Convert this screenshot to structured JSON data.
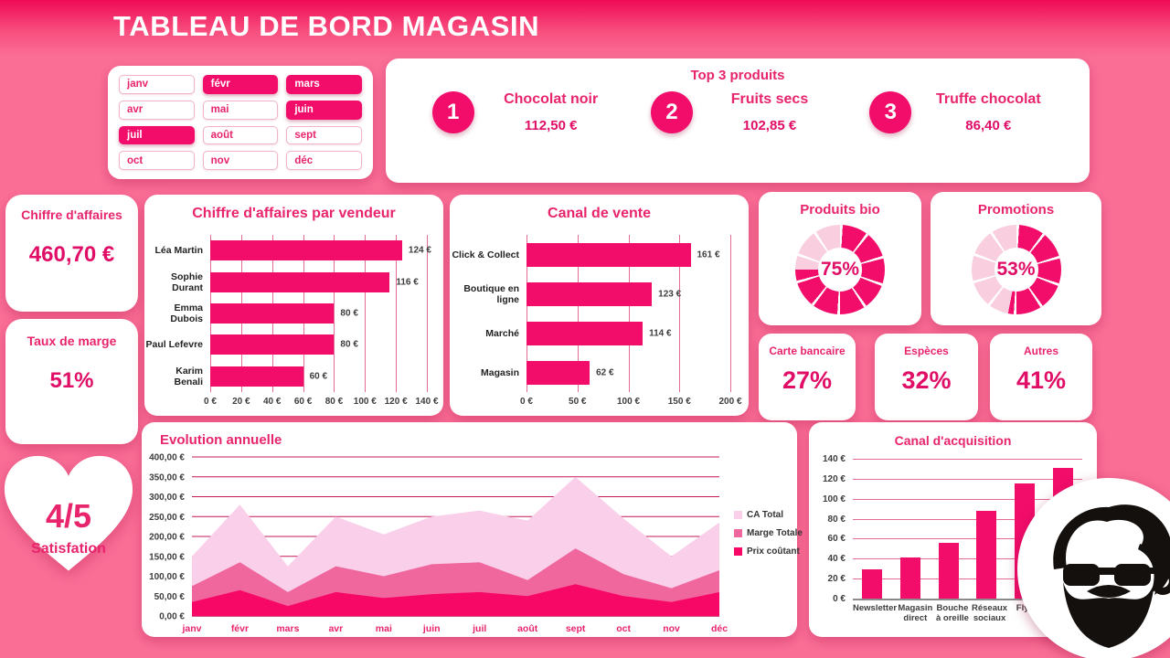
{
  "header": {
    "title": "TABLEAU DE BORD MAGASIN"
  },
  "colors": {
    "background": "#FA6E96",
    "header_gradient_top": "#EF0A57",
    "accent": "#F20D6B",
    "title_pink": "#E8246D",
    "value_pink": "#E00E66",
    "donut_light": "#F9CFE0",
    "grid_light": "#E46A97",
    "grid_dark": "#C21858",
    "axis_text": "#3D3D3D",
    "card_bg": "#FFFFFF"
  },
  "month_selector": {
    "months": [
      {
        "label": "janv",
        "selected": false
      },
      {
        "label": "févr",
        "selected": true
      },
      {
        "label": "mars",
        "selected": true
      },
      {
        "label": "avr",
        "selected": false
      },
      {
        "label": "mai",
        "selected": false
      },
      {
        "label": "juin",
        "selected": true
      },
      {
        "label": "juil",
        "selected": true
      },
      {
        "label": "août",
        "selected": false
      },
      {
        "label": "sept",
        "selected": false
      },
      {
        "label": "oct",
        "selected": false
      },
      {
        "label": "nov",
        "selected": false
      },
      {
        "label": "déc",
        "selected": false
      }
    ]
  },
  "top_products": {
    "title": "Top 3 produits",
    "items": [
      {
        "rank": "1",
        "name": "Chocolat noir",
        "value": "112,50 €"
      },
      {
        "rank": "2",
        "name": "Fruits secs",
        "value": "102,85 €"
      },
      {
        "rank": "3",
        "name": "Truffe chocolat",
        "value": "86,40 €"
      }
    ]
  },
  "kpis": {
    "revenue": {
      "label": "Chiffre d'affaires",
      "value": "460,70 €"
    },
    "margin": {
      "label": "Taux de marge",
      "value": "51%"
    }
  },
  "donuts": [
    {
      "title": "Produits bio",
      "value": 75,
      "display": "75%"
    },
    {
      "title": "Promotions",
      "value": 53,
      "display": "53%"
    }
  ],
  "payment_methods": [
    {
      "label": "Carte bancaire",
      "value": "27%"
    },
    {
      "label": "Espèces",
      "value": "32%"
    },
    {
      "label": "Autres",
      "value": "41%"
    }
  ],
  "satisfaction": {
    "value": "4/5",
    "label": "Satisfation"
  },
  "chart_data": [
    {
      "type": "bar",
      "orientation": "horizontal",
      "title": "Chiffre d'affaires par vendeur",
      "categories": [
        "Léa Martin",
        "Sophie Durant",
        "Emma Dubois",
        "Paul Lefevre",
        "Karim Benali"
      ],
      "values": [
        124,
        116,
        80,
        80,
        60
      ],
      "value_labels": [
        "124 €",
        "116 €",
        "80 €",
        "80 €",
        "60 €"
      ],
      "xlim": [
        0,
        140
      ],
      "tick_step": 20,
      "unit": "€",
      "grid": true
    },
    {
      "type": "bar",
      "orientation": "horizontal",
      "title": "Canal de vente",
      "categories": [
        "Click & Collect",
        "Boutique en ligne",
        "Marché",
        "Magasin"
      ],
      "values": [
        161,
        123,
        114,
        62
      ],
      "value_labels": [
        "161 €",
        "123 €",
        "114 €",
        "62 €"
      ],
      "xlim": [
        0,
        200
      ],
      "tick_step": 50,
      "unit": "€",
      "grid": true
    },
    {
      "type": "area",
      "title": "Evolution annuelle",
      "x": [
        "janv",
        "févr",
        "mars",
        "avr",
        "mai",
        "juin",
        "juil",
        "août",
        "sept",
        "oct",
        "nov",
        "déc"
      ],
      "series": [
        {
          "name": "CA Total",
          "color": "#F9CFEA",
          "values": [
            150,
            280,
            125,
            250,
            205,
            250,
            265,
            240,
            350,
            245,
            150,
            235
          ]
        },
        {
          "name": "Marge Totale",
          "color": "#F0679E",
          "values": [
            75,
            135,
            60,
            125,
            100,
            130,
            135,
            90,
            170,
            105,
            70,
            115
          ]
        },
        {
          "name": "Prix coûtant",
          "color": "#F70866",
          "values": [
            35,
            65,
            25,
            60,
            45,
            55,
            60,
            50,
            80,
            50,
            35,
            60
          ]
        }
      ],
      "ylim": [
        0,
        400
      ],
      "tick_step": 50,
      "ytick_format": "eur2",
      "legend_position": "right",
      "grid": true
    },
    {
      "type": "bar",
      "orientation": "vertical",
      "title": "Canal d'acquisition",
      "categories": [
        "Newsletter",
        "Magasin direct",
        "Bouche à oreille",
        "Réseaux sociaux",
        "Flyer",
        ""
      ],
      "values": [
        29,
        41,
        56,
        88,
        115,
        131
      ],
      "ylim": [
        0,
        140
      ],
      "tick_step": 20,
      "unit": "€",
      "grid": true
    }
  ]
}
